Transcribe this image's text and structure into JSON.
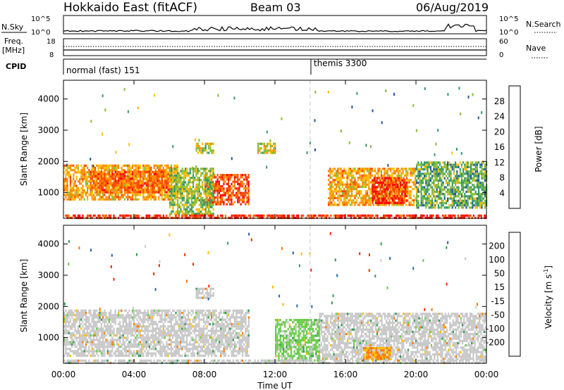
{
  "header": {
    "title": "Hokkaido East (fitACF)",
    "beam": "Beam 03",
    "date": "06/Aug/2019"
  },
  "summary": {
    "nsky_label": "N.Sky",
    "nsearch_label": "N.Search",
    "freq_label": "Freq.",
    "freq_unit": "[MHz]",
    "nave_label": "Nave",
    "cpid_label": "CPID",
    "left_top_ticks": [
      "10^5",
      "10^0"
    ],
    "right_top_ticks": [
      "10^5",
      "10^0"
    ],
    "freq_ticks": [
      "18",
      "8"
    ],
    "nave_ticks": [
      "60",
      "0"
    ],
    "cpid_modes": [
      "normal (fast) 151",
      "themis 3300"
    ]
  },
  "axes": {
    "ylabel": "Slant Range [km]",
    "xlabel": "Time UT",
    "yticks": [
      "4000",
      "3000",
      "2000",
      "1000"
    ],
    "xticks": [
      "00:00",
      "04:00",
      "08:00",
      "12:00",
      "16:00",
      "20:00",
      "00:00"
    ]
  },
  "power_scale": {
    "label": "Power [dB]",
    "ticks": [
      "28",
      "24",
      "20",
      "16",
      "12",
      "8",
      "4"
    ],
    "colors": [
      "#ff0000",
      "#ff4400",
      "#ff8800",
      "#ffbb00",
      "#88bb33",
      "#339966",
      "#225599",
      "#0000ff"
    ]
  },
  "velocity_scale": {
    "label_main": "Velocity [m s",
    "label_sup": "-1",
    "label_end": "]",
    "ticks": [
      "200",
      "100",
      "50",
      "15",
      "-15",
      "-50",
      "-100",
      "-200"
    ],
    "colors": [
      "#2233aa",
      "#2266aa",
      "#339955",
      "#66cc44",
      "#c8c8c8",
      "#ffbb00",
      "#ff7700",
      "#ff2200",
      "#ff0000"
    ]
  },
  "chart_data": {
    "type": "heatmap",
    "time_range_ut": [
      "00:00",
      "24:00"
    ],
    "slant_range_km": [
      180,
      4600
    ],
    "cpid_switch_ut": "14:00",
    "panels": [
      {
        "name": "Power",
        "unit": "dB",
        "range": [
          0,
          32
        ],
        "blocks": [
          {
            "t0": 0.0,
            "t1": 6.5,
            "r0": 800,
            "r1": 1900,
            "value": 20
          },
          {
            "t0": 1.5,
            "t1": 6.0,
            "r0": 1000,
            "r1": 1700,
            "value": 24
          },
          {
            "t0": 8.0,
            "t1": 10.5,
            "r0": 600,
            "r1": 1600,
            "value": 26
          },
          {
            "t0": 15.0,
            "t1": 20.0,
            "r0": 600,
            "r1": 1800,
            "value": 20
          },
          {
            "t0": 17.5,
            "t1": 19.5,
            "r0": 700,
            "r1": 1500,
            "value": 28
          },
          {
            "t0": 6.0,
            "t1": 8.5,
            "r0": 300,
            "r1": 1800,
            "value": 14
          },
          {
            "t0": 20.0,
            "t1": 24.0,
            "r0": 500,
            "r1": 2000,
            "value": 12
          },
          {
            "t0": 7.5,
            "t1": 8.5,
            "r0": 2300,
            "r1": 2600,
            "value": 16
          },
          {
            "t0": 11.0,
            "t1": 12.0,
            "r0": 2300,
            "r1": 2600,
            "value": 16
          },
          {
            "t0": 0.0,
            "t1": 24.0,
            "r0": 180,
            "r1": 300,
            "value": 28
          }
        ]
      },
      {
        "name": "Velocity",
        "unit": "m s-1",
        "range": [
          -250,
          250
        ],
        "blocks": [
          {
            "t0": 0.0,
            "t1": 10.5,
            "r0": 400,
            "r1": 1900,
            "value": 0
          },
          {
            "t0": 14.5,
            "t1": 24.0,
            "r0": 300,
            "r1": 1800,
            "value": 0
          },
          {
            "t0": 17.0,
            "t1": 18.5,
            "r0": 300,
            "r1": 700,
            "value": -50
          },
          {
            "t0": 12.0,
            "t1": 14.5,
            "r0": 300,
            "r1": 1600,
            "value": 20
          },
          {
            "t0": 7.5,
            "t1": 8.5,
            "r0": 2300,
            "r1": 2600,
            "value": 0
          },
          {
            "t0": 0.0,
            "t1": 24.0,
            "r0": 180,
            "r1": 300,
            "value": 0
          }
        ]
      }
    ]
  }
}
